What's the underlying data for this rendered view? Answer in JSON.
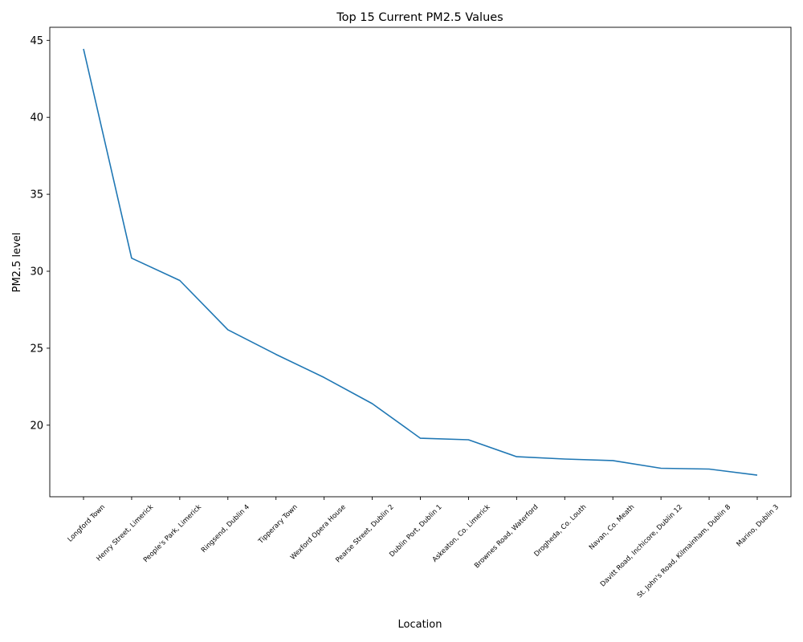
{
  "chart_data": {
    "type": "line",
    "title": "Top 15 Current PM2.5 Values",
    "xlabel": "Location",
    "ylabel": "PM2.5 level",
    "categories": [
      "Longford Town",
      "Henry Street, Limerick",
      "People's Park, Limerick",
      "Ringsend, Dublin 4",
      "Tipperary Town",
      "Wexford Opera House",
      "Pearse Street, Dublin 2",
      "Dublin Port, Dublin 1",
      "Askeaton, Co. Limerick",
      "Brownes Road, Waterford",
      "Drogheda, Co. Louth",
      "Navan, Co. Meath",
      "Davitt Road, Inchicore, Dublin 12",
      "St. John's Road, Kilmainham, Dublin 8",
      "Marino, Dublin 3"
    ],
    "values": [
      44.45,
      30.85,
      29.4,
      26.2,
      24.6,
      23.1,
      21.4,
      19.15,
      19.05,
      17.95,
      17.8,
      17.7,
      17.2,
      17.15,
      16.75
    ],
    "yticks": [
      20,
      25,
      30,
      35,
      40,
      45
    ],
    "ylim": [
      15.35,
      45.85
    ],
    "grid": false,
    "legend": "none",
    "colors": {
      "series": "#1f77b4"
    }
  }
}
